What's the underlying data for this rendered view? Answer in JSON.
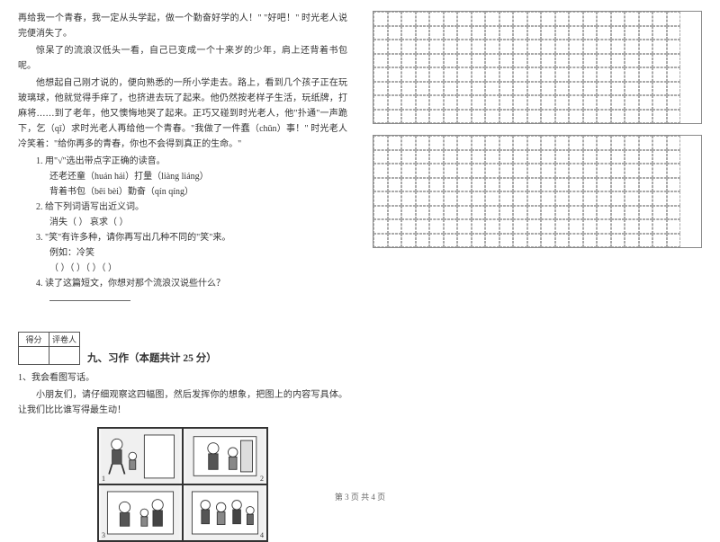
{
  "passage": {
    "p1": "再给我一个青春，我一定从头学起，做一个勤奋好学的人！\" \"好吧！\" 时光老人说完便消失了。",
    "p2": "惊呆了的流浪汉低头一看，自己已变成一个十来岁的少年，肩上还背着书包呢。",
    "p3": "他想起自己刚才说的，便向熟悉的一所小学走去。路上，看到几个孩子正在玩玻璃球，他就觉得手痒了，也挤进去玩了起来。他仍然按老样子生活，玩纸牌，打麻将……到了老年，他又懊悔地哭了起来。正巧又碰到时光老人，他\"扑通\"一声跪下，乞（qǐ）求时光老人再给他一个青春。\"我做了一件蠢（chǔn）事！\" 时光老人冷笑着：\"给你再多的青春，你也不会得到真正的生命。\""
  },
  "questions": {
    "q1_stem": "1. 用\"√\"选出带点字正确的读音。",
    "q1_a": "还老还童（huán  hái）打量（liàng  liáng）",
    "q1_b": "背着书包（bēi  bèi）勤奋（qín  qíng）",
    "q2_stem": "2. 给下列词语写出近义词。",
    "q2_a": "消失（        ）    哀求（        ）",
    "q3_stem": "3. \"笑\"有许多种，请你再写出几种不同的\"笑\"来。",
    "q3_a": "例如：冷笑",
    "q3_b": "（        ）（        ）（        ）（        ）",
    "q4_stem": "4. 读了这篇短文，你想对那个流浪汉说些什么？"
  },
  "score_labels": {
    "a": "得分",
    "b": "评卷人"
  },
  "section9": {
    "title": "九、习作（本题共计 25 分）",
    "line1": "1、我会看图写话。",
    "line2": "小朋友们，请仔细观察这四幅图，然后发挥你的想象，把图上的内容写具体。让我们比比谁写得最生动！"
  },
  "panel_nums": [
    "1",
    "2",
    "3",
    "4"
  ],
  "footer": "第 3 页  共 4 页",
  "grid": {
    "rows": 8,
    "cols": 22
  },
  "colors": {
    "text": "#333333",
    "border": "#888888",
    "dashed": "#aaaaaa",
    "bg": "#ffffff"
  }
}
